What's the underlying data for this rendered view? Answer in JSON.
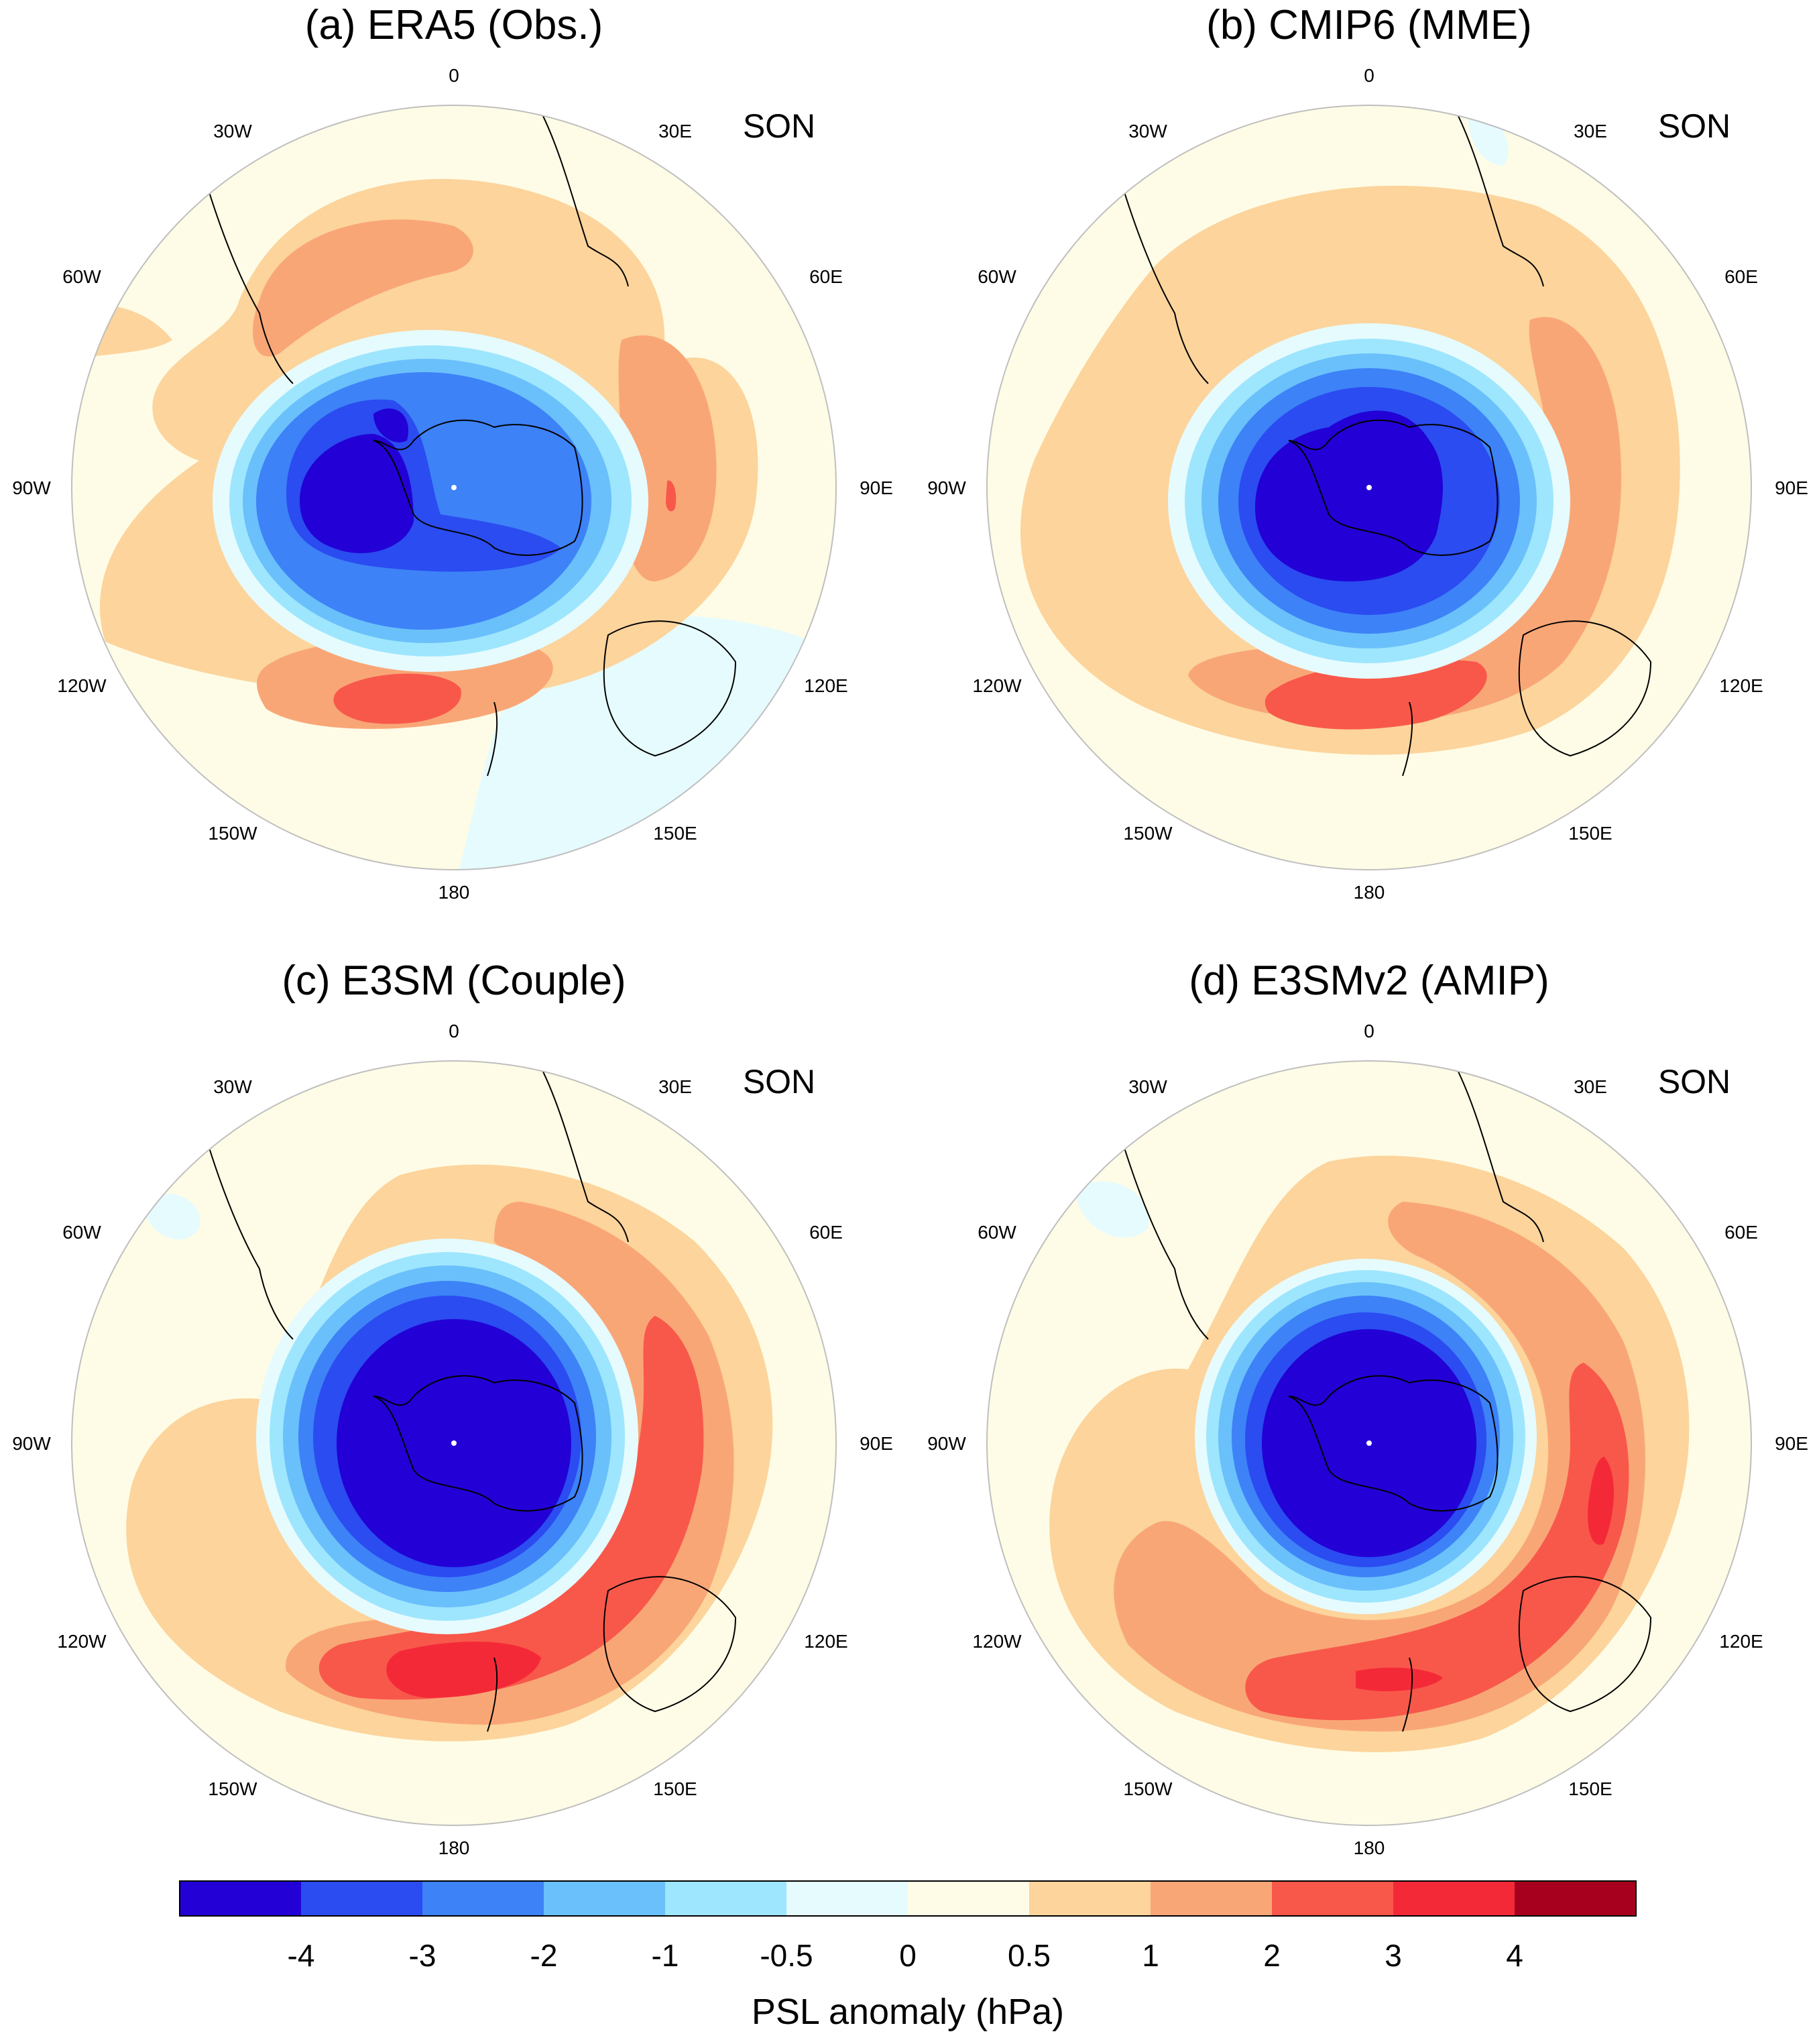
{
  "panels": [
    {
      "id": "a",
      "title": "(a) ERA5 (Obs.)",
      "season": "SON",
      "lon_labels": [
        "0",
        "30E",
        "60E",
        "90E",
        "120E",
        "150E",
        "180",
        "150W",
        "120W",
        "90W",
        "60W",
        "30W"
      ]
    },
    {
      "id": "b",
      "title": "(b) CMIP6 (MME)",
      "season": "SON",
      "lon_labels": [
        "0",
        "30E",
        "60E",
        "90E",
        "120E",
        "150E",
        "180",
        "150W",
        "120W",
        "90W",
        "60W",
        "30W"
      ]
    },
    {
      "id": "c",
      "title": "(c) E3SM (Couple)",
      "season": "SON",
      "lon_labels": [
        "0",
        "30E",
        "60E",
        "90E",
        "120E",
        "150E",
        "180",
        "150W",
        "120W",
        "90W",
        "60W",
        "30W"
      ]
    },
    {
      "id": "d",
      "title": "(d) E3SMv2 (AMIP)",
      "season": "SON",
      "lon_labels": [
        "0",
        "30E",
        "60E",
        "90E",
        "120E",
        "150E",
        "180",
        "150W",
        "120W",
        "90W",
        "60W",
        "30W"
      ]
    }
  ],
  "colorbar": {
    "title": "PSL anomaly (hPa)",
    "tick_labels": [
      "-4",
      "-3",
      "-2",
      "-1",
      "-0.5",
      "0",
      "0.5",
      "1",
      "2",
      "3",
      "4"
    ],
    "colors": [
      "#2200d6",
      "#2a4cf0",
      "#3d82f7",
      "#6ac0fb",
      "#9ee6fd",
      "#e6fbfe",
      "#fefce6",
      "#fcd49c",
      "#f9a677",
      "#f8584a",
      "#f42938",
      "#a6001e"
    ]
  }
}
